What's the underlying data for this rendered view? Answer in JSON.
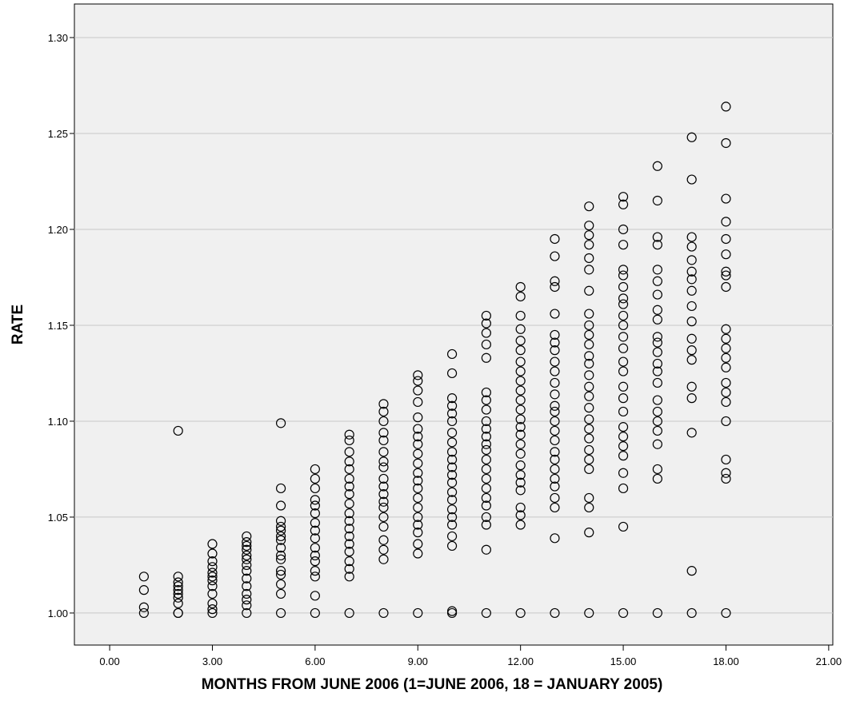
{
  "chart_data": {
    "type": "scatter",
    "x_label": "MONTHS FROM JUNE 2006 (1=JUNE 2006, 18 = JANUARY 2005)",
    "y_label": "RATE",
    "color": "#000000",
    "background": "#f0f0f0",
    "grid": true,
    "xlim": [
      -1.03,
      21.12
    ],
    "ylim": [
      0.9833,
      1.3175
    ],
    "xticks": [
      {
        "value": 0,
        "label": "0.00"
      },
      {
        "value": 3,
        "label": "3.00"
      },
      {
        "value": 6,
        "label": "6.00"
      },
      {
        "value": 9,
        "label": "9.00"
      },
      {
        "value": 12,
        "label": "12.00"
      },
      {
        "value": 15,
        "label": "15.00"
      },
      {
        "value": 18,
        "label": "18.00"
      },
      {
        "value": 21,
        "label": "21.00"
      }
    ],
    "yticks": [
      {
        "value": 1,
        "label": "1.00"
      },
      {
        "value": 1.05,
        "label": "1.05"
      },
      {
        "value": 1.1,
        "label": "1.10"
      },
      {
        "value": 1.15,
        "label": "1.15"
      },
      {
        "value": 1.2,
        "label": "1.20"
      },
      {
        "value": 1.25,
        "label": "1.25"
      },
      {
        "value": 1.3,
        "label": "1.30"
      }
    ],
    "x": [
      1,
      1,
      1,
      1,
      2,
      2,
      2,
      2,
      2,
      2,
      2,
      2,
      2,
      2,
      3,
      3,
      3,
      3,
      3,
      3,
      3,
      3,
      3,
      3,
      3,
      3,
      4,
      4,
      4,
      4,
      4,
      4,
      4,
      4,
      4,
      4,
      4,
      4,
      4,
      4,
      5,
      5,
      5,
      5,
      5,
      5,
      5,
      5,
      5,
      5,
      5,
      5,
      5,
      5,
      5,
      5,
      6,
      6,
      6,
      6,
      6,
      6,
      6,
      6,
      6,
      6,
      6,
      6,
      6,
      6,
      6,
      6,
      7,
      7,
      7,
      7,
      7,
      7,
      7,
      7,
      7,
      7,
      7,
      7,
      7,
      7,
      7,
      7,
      7,
      7,
      7,
      8,
      8,
      8,
      8,
      8,
      8,
      8,
      8,
      8,
      8,
      8,
      8,
      8,
      8,
      8,
      8,
      8,
      8,
      8,
      9,
      9,
      9,
      9,
      9,
      9,
      9,
      9,
      9,
      9,
      9,
      9,
      9,
      9,
      9,
      9,
      9,
      9,
      9,
      9,
      9,
      10,
      10,
      10,
      10,
      10,
      10,
      10,
      10,
      10,
      10,
      10,
      10,
      10,
      10,
      10,
      10,
      10,
      10,
      10,
      10,
      10,
      10,
      11,
      11,
      11,
      11,
      11,
      11,
      11,
      11,
      11,
      11,
      11,
      11,
      11,
      11,
      11,
      11,
      11,
      11,
      11,
      11,
      11,
      11,
      11,
      12,
      12,
      12,
      12,
      12,
      12,
      12,
      12,
      12,
      12,
      12,
      12,
      12,
      12,
      12,
      12,
      12,
      12,
      12,
      12,
      12,
      12,
      12,
      12,
      12,
      13,
      13,
      13,
      13,
      13,
      13,
      13,
      13,
      13,
      13,
      13,
      13,
      13,
      13,
      13,
      13,
      13,
      13,
      13,
      13,
      13,
      13,
      13,
      13,
      13,
      13,
      14,
      14,
      14,
      14,
      14,
      14,
      14,
      14,
      14,
      14,
      14,
      14,
      14,
      14,
      14,
      14,
      14,
      14,
      14,
      14,
      14,
      14,
      14,
      14,
      14,
      14,
      14,
      15,
      15,
      15,
      15,
      15,
      15,
      15,
      15,
      15,
      15,
      15,
      15,
      15,
      15,
      15,
      15,
      15,
      15,
      15,
      15,
      15,
      15,
      15,
      15,
      15,
      15,
      16,
      16,
      16,
      16,
      16,
      16,
      16,
      16,
      16,
      16,
      16,
      16,
      16,
      16,
      16,
      16,
      16,
      16,
      16,
      16,
      16,
      16,
      16,
      17,
      17,
      17,
      17,
      17,
      17,
      17,
      17,
      17,
      17,
      17,
      17,
      17,
      17,
      17,
      17,
      17,
      17,
      18,
      18,
      18,
      18,
      18,
      18,
      18,
      18,
      18,
      18,
      18,
      18,
      18,
      18,
      18,
      18,
      18,
      18,
      18,
      18,
      18,
      18
    ],
    "values": [
      1.0,
      1.003,
      1.012,
      1.019,
      1.0,
      1.0,
      1.005,
      1.008,
      1.01,
      1.012,
      1.014,
      1.016,
      1.019,
      1.095,
      1.0,
      1.002,
      1.005,
      1.01,
      1.014,
      1.017,
      1.019,
      1.021,
      1.024,
      1.027,
      1.031,
      1.036,
      1.0,
      1.004,
      1.007,
      1.01,
      1.014,
      1.018,
      1.022,
      1.025,
      1.028,
      1.03,
      1.033,
      1.035,
      1.037,
      1.04,
      1.0,
      1.01,
      1.015,
      1.02,
      1.022,
      1.028,
      1.03,
      1.034,
      1.038,
      1.04,
      1.043,
      1.045,
      1.048,
      1.056,
      1.065,
      1.099,
      1.0,
      1.009,
      1.019,
      1.022,
      1.027,
      1.03,
      1.034,
      1.039,
      1.043,
      1.047,
      1.052,
      1.056,
      1.059,
      1.065,
      1.07,
      1.075,
      1.0,
      1.019,
      1.023,
      1.027,
      1.032,
      1.036,
      1.04,
      1.044,
      1.048,
      1.052,
      1.057,
      1.062,
      1.066,
      1.07,
      1.075,
      1.079,
      1.084,
      1.09,
      1.093,
      1.0,
      1.028,
      1.033,
      1.038,
      1.045,
      1.05,
      1.055,
      1.058,
      1.062,
      1.066,
      1.07,
      1.076,
      1.079,
      1.084,
      1.09,
      1.094,
      1.1,
      1.105,
      1.109,
      1.0,
      1.031,
      1.036,
      1.042,
      1.046,
      1.05,
      1.055,
      1.06,
      1.065,
      1.069,
      1.073,
      1.078,
      1.083,
      1.088,
      1.092,
      1.096,
      1.102,
      1.11,
      1.116,
      1.121,
      1.124,
      1.0,
      1.001,
      1.035,
      1.04,
      1.046,
      1.05,
      1.054,
      1.059,
      1.063,
      1.068,
      1.072,
      1.076,
      1.08,
      1.084,
      1.089,
      1.094,
      1.1,
      1.104,
      1.108,
      1.112,
      1.125,
      1.135,
      1.0,
      1.033,
      1.046,
      1.05,
      1.056,
      1.06,
      1.065,
      1.07,
      1.075,
      1.08,
      1.085,
      1.088,
      1.092,
      1.096,
      1.1,
      1.106,
      1.111,
      1.115,
      1.133,
      1.14,
      1.146,
      1.151,
      1.155,
      1.0,
      1.046,
      1.051,
      1.055,
      1.064,
      1.068,
      1.072,
      1.077,
      1.083,
      1.088,
      1.093,
      1.097,
      1.101,
      1.106,
      1.111,
      1.116,
      1.121,
      1.126,
      1.131,
      1.137,
      1.142,
      1.148,
      1.155,
      1.165,
      1.17,
      1.0,
      1.039,
      1.055,
      1.06,
      1.066,
      1.07,
      1.075,
      1.08,
      1.084,
      1.09,
      1.095,
      1.1,
      1.105,
      1.108,
      1.114,
      1.12,
      1.126,
      1.131,
      1.137,
      1.141,
      1.145,
      1.156,
      1.17,
      1.173,
      1.186,
      1.195,
      1.0,
      1.042,
      1.055,
      1.06,
      1.075,
      1.08,
      1.085,
      1.091,
      1.096,
      1.101,
      1.107,
      1.113,
      1.118,
      1.124,
      1.13,
      1.134,
      1.14,
      1.145,
      1.15,
      1.156,
      1.168,
      1.179,
      1.185,
      1.192,
      1.197,
      1.202,
      1.212,
      1.0,
      1.045,
      1.065,
      1.073,
      1.082,
      1.087,
      1.092,
      1.097,
      1.105,
      1.112,
      1.118,
      1.126,
      1.131,
      1.138,
      1.144,
      1.15,
      1.155,
      1.161,
      1.164,
      1.17,
      1.176,
      1.179,
      1.192,
      1.2,
      1.213,
      1.217,
      1.0,
      1.07,
      1.075,
      1.088,
      1.095,
      1.1,
      1.105,
      1.111,
      1.12,
      1.126,
      1.13,
      1.136,
      1.141,
      1.144,
      1.153,
      1.158,
      1.166,
      1.173,
      1.179,
      1.192,
      1.196,
      1.215,
      1.233,
      1.0,
      1.022,
      1.094,
      1.112,
      1.118,
      1.132,
      1.137,
      1.143,
      1.152,
      1.16,
      1.168,
      1.174,
      1.178,
      1.184,
      1.191,
      1.196,
      1.226,
      1.248,
      1.0,
      1.07,
      1.073,
      1.08,
      1.1,
      1.11,
      1.115,
      1.12,
      1.128,
      1.133,
      1.138,
      1.143,
      1.148,
      1.17,
      1.176,
      1.178,
      1.187,
      1.195,
      1.204,
      1.216,
      1.245,
      1.264
    ]
  }
}
